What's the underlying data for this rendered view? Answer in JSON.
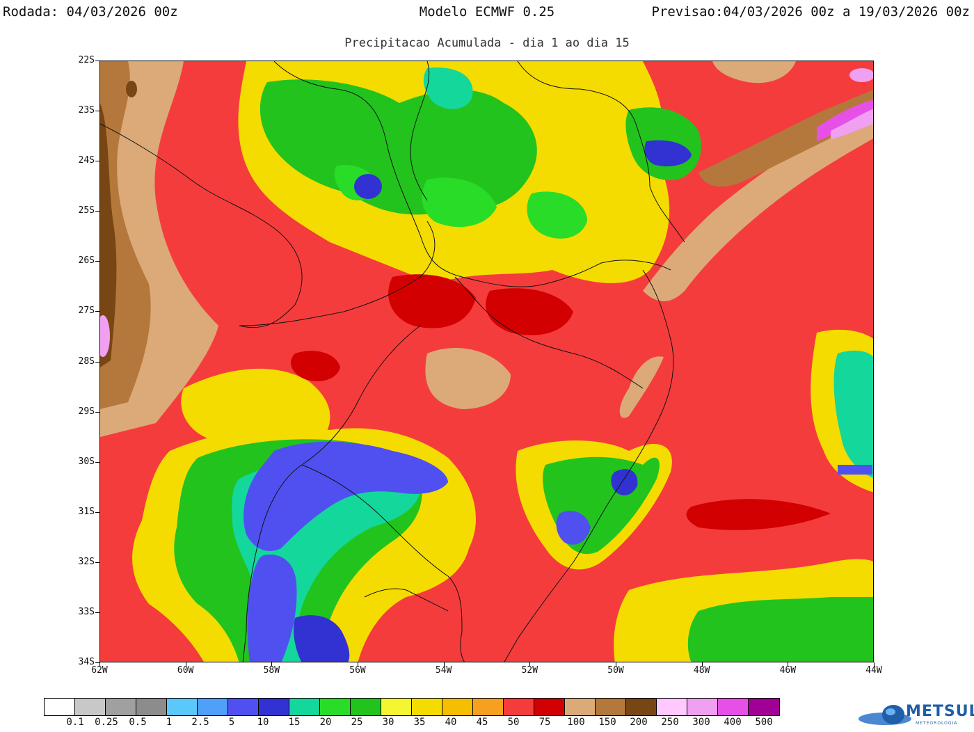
{
  "header": {
    "run_label": "Rodada:",
    "run_value": "04/03/2026 00z",
    "model": "Modelo ECMWF 0.25",
    "forecast_label": "Previsao:",
    "forecast_value": "04/03/2026 00z a 19/03/2026 00z"
  },
  "subtitle": "Precipitacao Acumulada - dia 1 ao dia 15",
  "map": {
    "lat_labels": [
      "22S",
      "23S",
      "24S",
      "25S",
      "26S",
      "27S",
      "28S",
      "29S",
      "30S",
      "31S",
      "32S",
      "33S",
      "34S"
    ],
    "lon_labels": [
      "62W",
      "60W",
      "58W",
      "56W",
      "54W",
      "52W",
      "50W",
      "48W",
      "46W",
      "44W"
    ]
  },
  "legend": {
    "colors": [
      "#ffffff",
      "#c8c8c8",
      "#a0a0a0",
      "#8c8c8c",
      "#5ac8fa",
      "#50a0fa",
      "#5050f0",
      "#3232d2",
      "#14d79b",
      "#28dc28",
      "#23c31e",
      "#f5f532",
      "#f5dc00",
      "#f5be00",
      "#f5a01e",
      "#f53c3c",
      "#d20000",
      "#dcaa78",
      "#b4783c",
      "#784614",
      "#ffc8ff",
      "#f0a0f0",
      "#e650e6",
      "#a00096"
    ],
    "labels": [
      "0.1",
      "0.25",
      "0.5",
      "1",
      "2.5",
      "5",
      "10",
      "15",
      "20",
      "25",
      "30",
      "35",
      "40",
      "45",
      "50",
      "75",
      "100",
      "150",
      "200",
      "250",
      "300",
      "400",
      "500"
    ]
  },
  "logo": {
    "name": "METSUL",
    "sub": "METEOROLOGIA"
  }
}
